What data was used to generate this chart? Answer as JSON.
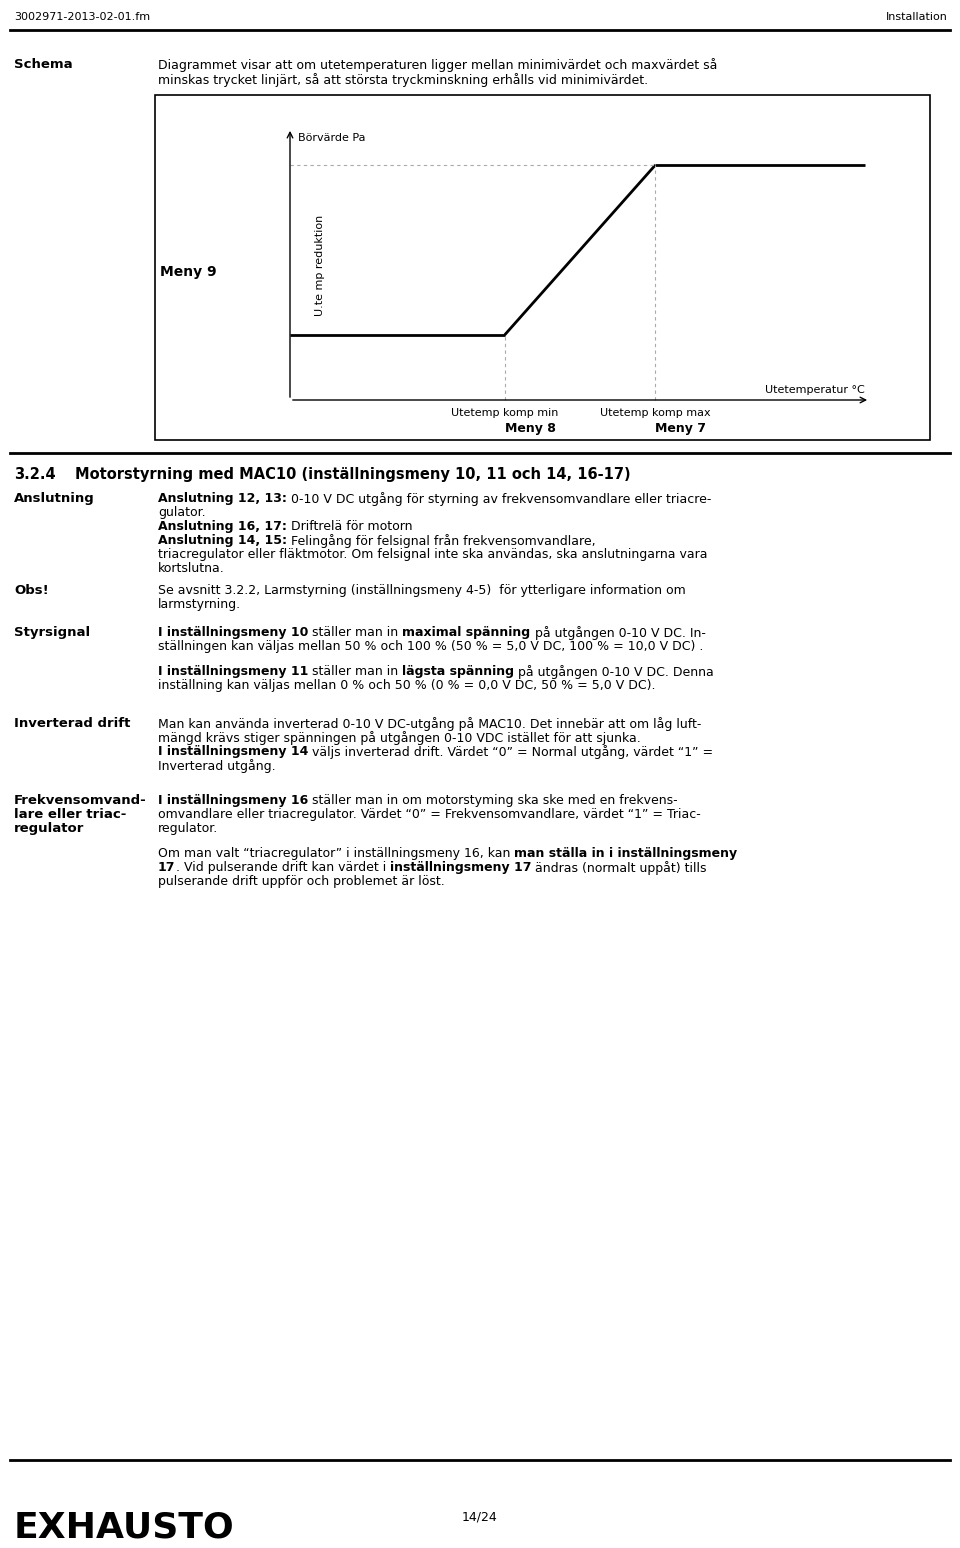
{
  "page_header_left": "3002971-2013-02-01.fm",
  "page_header_right": "Installation",
  "schema_label": "Schema",
  "schema_text_line1": "Diagrammet visar att om utetemperaturen ligger mellan minimivärdet och maxvärdet så",
  "schema_text_line2": "minskas trycket linjärt, så att största tryckminskning erhålls vid minimivärdet.",
  "chart_ylabel": "Börvärde Pa",
  "chart_ylabel2": "U.te mp reduktion",
  "chart_xlabel": "Utetemperatur °C",
  "chart_xlabel_min": "Utetemp komp min",
  "chart_xlabel_max": "Utetemp komp max",
  "meny9_label": "Meny 9",
  "meny8_label": "Meny 8",
  "meny7_label": "Meny 7",
  "section_title_num": "3.2.4",
  "section_title_text": "Motorstyrning med MAC10 (inställningsmeny 10, 11 och 14, 16-17)",
  "anslutning_label": "Anslutning",
  "ans_b1": "Anslutning 12, 13:",
  "ans_n1": " 0-10 V DC utgång för styrning av frekvensomvandlare eller triacre-",
  "ans_n1b": "gulator.",
  "ans_b2": "Anslutning 16, 17:",
  "ans_n2": " Driftrelä för motorn",
  "ans_b3": "Anslutning 14, 15:",
  "ans_n3": " Felingång för felsignal från frekvensomvandlare,",
  "ans_n4": "triacregulator eller fläktmotor. Om felsignal inte ska användas, ska anslutningarna vara",
  "ans_n5": "kortslutna.",
  "obs_label": "Obs!",
  "obs_text1": "Se avsnitt 3.2.2, Larmstyrning (inställningsmeny 4-5)  för ytterligare information om",
  "obs_text2": "larmstyrning.",
  "styrsignal_label": "Styrsignal",
  "sty_b1": "I inställningsmeny 10",
  "sty_n1": " ställer man in ",
  "sty_b2": "maximal spänning",
  "sty_n2": " på utgången 0-10 V DC. In-",
  "sty_n3": "ställningen kan väljas mellan 50 % och 100 % (50 % = 5,0 V DC, 100 % = 10,0 V DC) .",
  "sty_b4": "I inställningsmeny 11",
  "sty_n4": " ställer man in ",
  "sty_b5": "lägsta spänning",
  "sty_n5": " på utgången 0-10 V DC. Denna",
  "sty_n6": "inställning kan väljas mellan 0 % och 50 % (0 % = 0,0 V DC, 50 % = 5,0 V DC).",
  "inverterad_label": "Inverterad drift",
  "inv_n1": "Man kan använda inverterad 0-10 V DC-utgång på MAC10. Det innebär att om låg luft-",
  "inv_n2": "mängd krävs stiger spänningen på utgången 0-10 VDC istället för att sjunka.",
  "inv_b3": "I inställningsmeny 14",
  "inv_n3": " väljs inverterad drift. Värdet “0” = Normal utgång, värdet “1” =",
  "inv_n4": "Inverterad utgång.",
  "frekvens_label1": "Frekvensomvand-",
  "frekvens_label2": "lare eller triac-",
  "frekvens_label3": "regulator",
  "frek_b1": "I inställningsmeny 16",
  "frek_n1": " ställer man in om motorstyming ska ske med en frekvens-",
  "frek_n2": "omvandlare eller triacregulator. Värdet “0” = Frekvensomvandlare, värdet “1” = Triac-",
  "frek_n3": "regulator.",
  "frek_n4": "Om man valt “triacregulator” i inställningsmeny 16, kan ",
  "frek_b4": "man ställa in i inställningsmeny",
  "frek_b5": "17",
  "frek_n5": ". Vid pulserande drift kan värdet i ",
  "frek_b6": "inställningsmeny 17",
  "frek_n6": " ändras (normalt uppåt) tills",
  "frek_n7": "pulserande drift uppför och problemet är löst.",
  "footer_logo": "EXHAUSTO",
  "footer_page": "14/24"
}
